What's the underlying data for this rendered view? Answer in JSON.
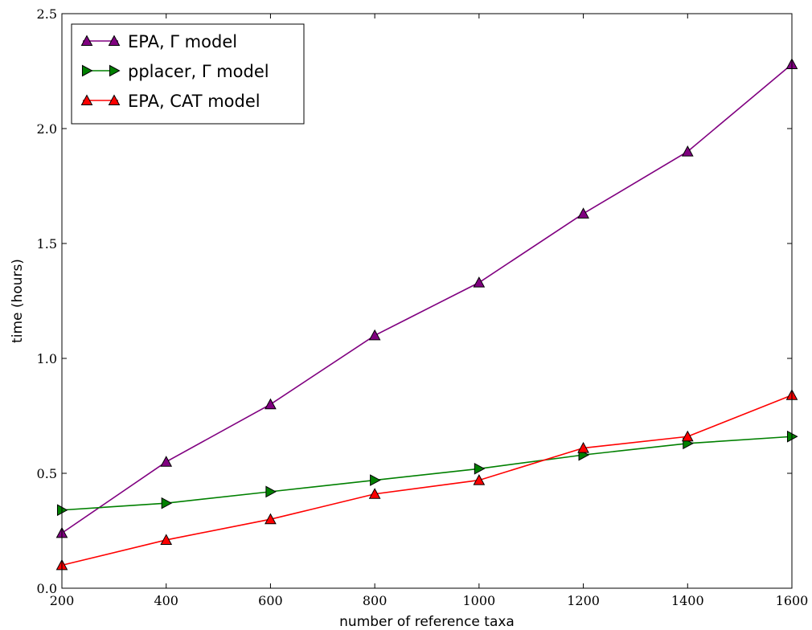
{
  "chart_data": {
    "type": "line",
    "xlabel": "number of reference taxa",
    "ylabel": "time (hours)",
    "xlim": [
      200,
      1600
    ],
    "ylim": [
      0.0,
      2.5
    ],
    "xticks": [
      "200",
      "400",
      "600",
      "800",
      "1000",
      "1200",
      "1400",
      "1600"
    ],
    "yticks": [
      "0.0",
      "0.5",
      "1.0",
      "1.5",
      "2.0",
      "2.5"
    ],
    "legend_position": "top-left",
    "grid": false,
    "x": [
      200,
      400,
      600,
      800,
      1000,
      1200,
      1400,
      1600
    ],
    "series": [
      {
        "name": "EPA, Γ model",
        "color": "#800080",
        "marker": "triangle-up",
        "values": [
          0.24,
          0.55,
          0.8,
          1.1,
          1.33,
          1.63,
          1.9,
          2.28
        ]
      },
      {
        "name": "pplacer, Γ model",
        "color": "#008000",
        "marker": "triangle-right",
        "values": [
          0.34,
          0.37,
          0.42,
          0.47,
          0.52,
          0.58,
          0.63,
          0.66
        ]
      },
      {
        "name": "EPA, CAT model",
        "color": "#ff0000",
        "marker": "triangle-up",
        "values": [
          0.1,
          0.21,
          0.3,
          0.41,
          0.47,
          0.61,
          0.66,
          0.84
        ]
      }
    ]
  }
}
